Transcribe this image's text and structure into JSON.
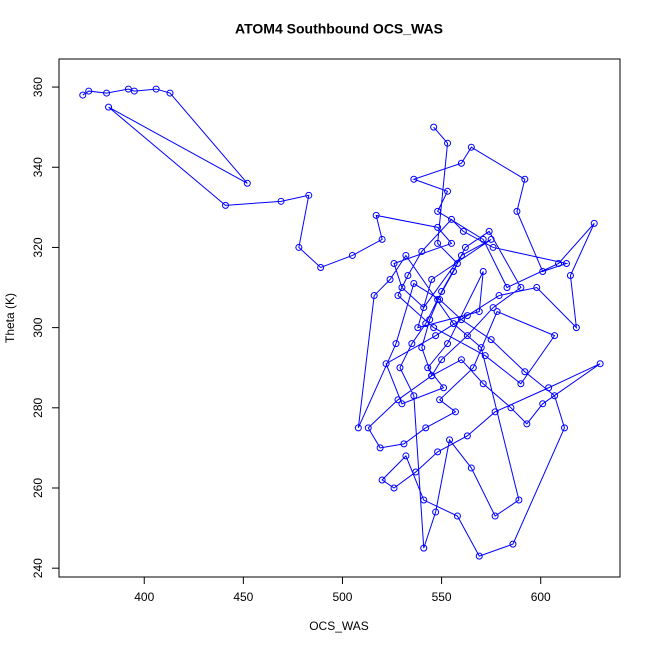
{
  "chart_data": {
    "type": "line",
    "title": "ATOM4 Southbound OCS_WAS",
    "x_label": "OCS_WAS",
    "y_label": "Theta (K)",
    "color": "#0000ff",
    "markers": true,
    "xlim": [
      357,
      640
    ],
    "ylim": [
      237.8,
      367
    ],
    "xticks": [
      400,
      450,
      500,
      550,
      600
    ],
    "yticks": [
      240,
      260,
      280,
      300,
      320,
      340,
      360
    ],
    "x": [
      369,
      372,
      381,
      392,
      395,
      406,
      413,
      452,
      382,
      441,
      469,
      483,
      478,
      489,
      505,
      520,
      517,
      548,
      555,
      526,
      530,
      541,
      560,
      575,
      545,
      538,
      569,
      571,
      553,
      543,
      551,
      530,
      522,
      547,
      563,
      579,
      598,
      618,
      615,
      627,
      609,
      583,
      571,
      548,
      553,
      536,
      560,
      565,
      592,
      588,
      601,
      613,
      576,
      561,
      555,
      540,
      533,
      528,
      546,
      572,
      590,
      607,
      578,
      566,
      549,
      557,
      542,
      531,
      519,
      513,
      528,
      545,
      560,
      571,
      585,
      593,
      601,
      630,
      604,
      577,
      563,
      548,
      537,
      526,
      520,
      532,
      541,
      558,
      569,
      586,
      612,
      607,
      592,
      575,
      560,
      549,
      536,
      527,
      508,
      516,
      524,
      532,
      556,
      570,
      589,
      577,
      565,
      554,
      547,
      541,
      536,
      529,
      535,
      542,
      548,
      556,
      562,
      574,
      590,
      576,
      563,
      550,
      545,
      540,
      544,
      550,
      558,
      548,
      553,
      546
    ],
    "series": [
      {
        "name": "OCS_WAS",
        "values": [
          358,
          359,
          358.5,
          359.5,
          359,
          359.5,
          358.5,
          336,
          355,
          330.5,
          331.5,
          333,
          320,
          315,
          318,
          322,
          328,
          325,
          321,
          316,
          310,
          305,
          318,
          322,
          312,
          300,
          304,
          314,
          296,
          290,
          285,
          281,
          291,
          298,
          303,
          308,
          310,
          300,
          313,
          326,
          316,
          310,
          322,
          329,
          334,
          337,
          341,
          345,
          337,
          329,
          314,
          316,
          320,
          324,
          327,
          319,
          313,
          308,
          300,
          293,
          286,
          298,
          304,
          290,
          282,
          279,
          275,
          271,
          270,
          275,
          282,
          288,
          292,
          286,
          280,
          276,
          281,
          291,
          285,
          279,
          273,
          269,
          264,
          260,
          262,
          268,
          257,
          253,
          243,
          246,
          275,
          283,
          289,
          297,
          302,
          307,
          311,
          296,
          275,
          308,
          312,
          318,
          301,
          295,
          257,
          253,
          265,
          272,
          254,
          245,
          283,
          290,
          296,
          301,
          307,
          314,
          320,
          324,
          310,
          305,
          298,
          292,
          288,
          295,
          302,
          309,
          316,
          321,
          346,
          350
        ]
      }
    ]
  }
}
